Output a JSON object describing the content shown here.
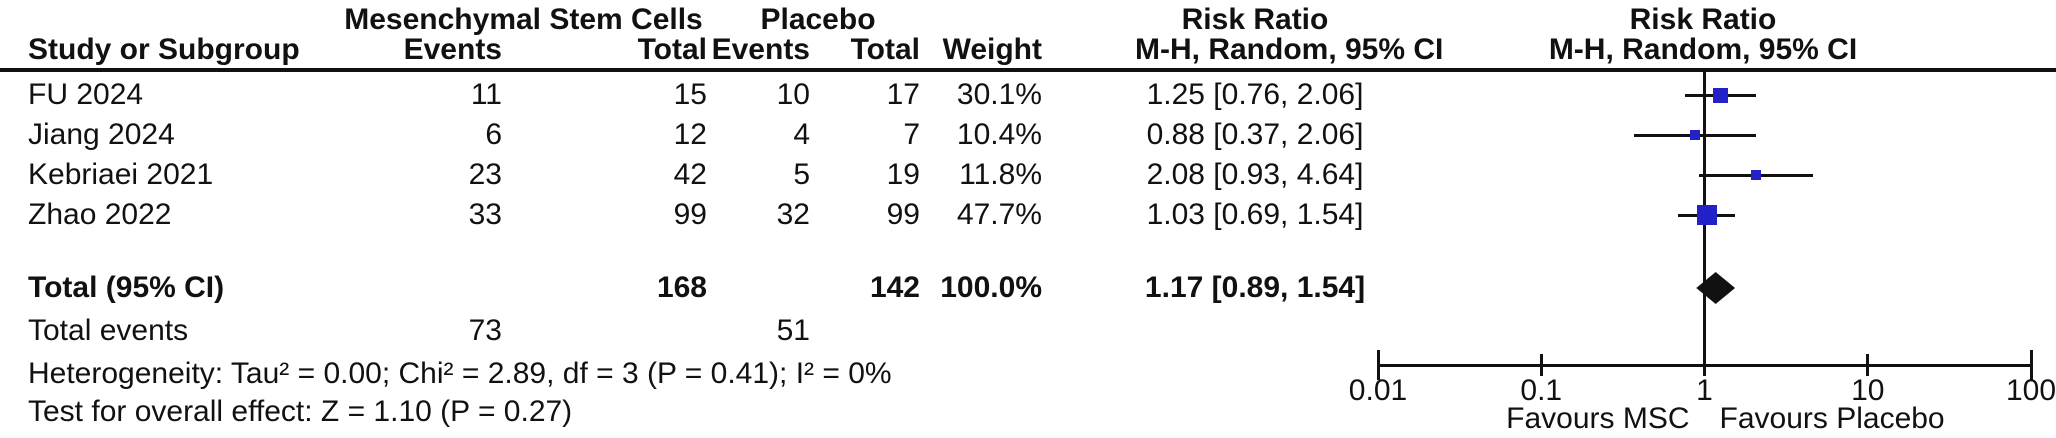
{
  "table": {
    "group1_header": "Mesenchymal Stem Cells",
    "group2_header": "Placebo",
    "col_study": "Study or Subgroup",
    "col_events": "Events",
    "col_total": "Total",
    "col_weight": "Weight",
    "rr_text_header_title": "Risk Ratio",
    "rr_text_header_sub": "M-H, Random, 95% CI",
    "rr_plot_header_title": "Risk Ratio",
    "rr_plot_header_sub": "M-H, Random, 95% CI",
    "rows": [
      {
        "study": "FU 2024",
        "events1": "11",
        "total1": "15",
        "events2": "10",
        "total2": "17",
        "weight": "30.1%",
        "rr_text": "1.25 [0.76, 2.06]"
      },
      {
        "study": "Jiang 2024",
        "events1": "6",
        "total1": "12",
        "events2": "4",
        "total2": "7",
        "weight": "10.4%",
        "rr_text": "0.88 [0.37, 2.06]"
      },
      {
        "study": "Kebriaei 2021",
        "events1": "23",
        "total1": "42",
        "events2": "5",
        "total2": "19",
        "weight": "11.8%",
        "rr_text": "2.08 [0.93, 4.64]"
      },
      {
        "study": "Zhao 2022",
        "events1": "33",
        "total1": "99",
        "events2": "32",
        "total2": "99",
        "weight": "47.7%",
        "rr_text": "1.03 [0.69, 1.54]"
      }
    ],
    "total_row": {
      "label": "Total (95% CI)",
      "total1": "168",
      "total2": "142",
      "weight": "100.0%",
      "rr_text": "1.17 [0.89, 1.54]"
    },
    "total_events_row": {
      "label": "Total events",
      "events1": "73",
      "events2": "51"
    },
    "heterogeneity": "Heterogeneity: Tau² = 0.00; Chi² = 2.89, df = 3 (P = 0.41); I² = 0%",
    "overall_effect": "Test for overall effect: Z = 1.10 (P = 0.27)"
  },
  "chart_data": {
    "type": "forest",
    "x_scale": "log10",
    "x_range": [
      0.01,
      100
    ],
    "x_ticks": [
      "0.01",
      "0.1",
      "1",
      "10",
      "100"
    ],
    "x_tick_values": [
      0.01,
      0.1,
      1,
      10,
      100
    ],
    "studies": [
      {
        "name": "FU 2024",
        "rr": 1.25,
        "ci_low": 0.76,
        "ci_high": 2.06,
        "weight_pct": 30.1
      },
      {
        "name": "Jiang 2024",
        "rr": 0.88,
        "ci_low": 0.37,
        "ci_high": 2.06,
        "weight_pct": 10.4
      },
      {
        "name": "Kebriaei 2021",
        "rr": 2.08,
        "ci_low": 0.93,
        "ci_high": 4.64,
        "weight_pct": 11.8
      },
      {
        "name": "Zhao 2022",
        "rr": 1.03,
        "ci_low": 0.69,
        "ci_high": 1.54,
        "weight_pct": 47.7
      }
    ],
    "overall": {
      "rr": 1.17,
      "ci_low": 0.89,
      "ci_high": 1.54
    },
    "favours_left": "Favours MSC",
    "favours_right": "Favours Placebo",
    "marker_color": "#2222c8",
    "diamond_color": "#111111",
    "effect_measure": "Risk Ratio",
    "model": "M-H, Random, 95% CI"
  }
}
